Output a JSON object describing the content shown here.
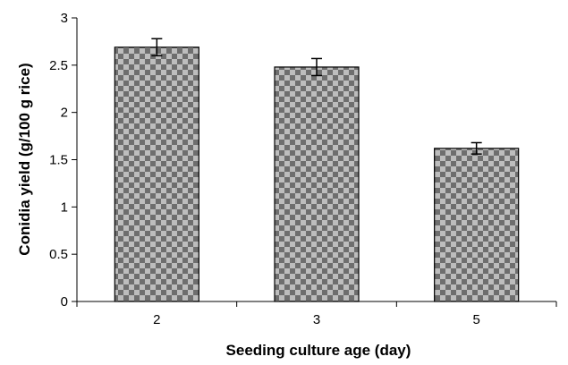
{
  "chart_data": {
    "type": "bar",
    "categories": [
      "2",
      "3",
      "5"
    ],
    "values": [
      2.69,
      2.48,
      1.62
    ],
    "error": [
      0.09,
      0.09,
      0.06
    ],
    "xlabel": "Seeding culture age (day)",
    "ylabel": "Conidia yield (g/100 g rice)",
    "ylim": [
      0,
      3
    ],
    "yticks": [
      "0",
      "0.5",
      "1",
      "1.5",
      "2",
      "2.5",
      "3"
    ],
    "ytick_values": [
      0,
      0.5,
      1,
      1.5,
      2,
      2.5,
      3
    ],
    "grid": false,
    "legend": "none",
    "bar_pattern": "checkerboard",
    "colors": {
      "bar_dark": "#6e6e6e",
      "bar_light": "#bdbdbd",
      "axis": "#000000"
    }
  }
}
